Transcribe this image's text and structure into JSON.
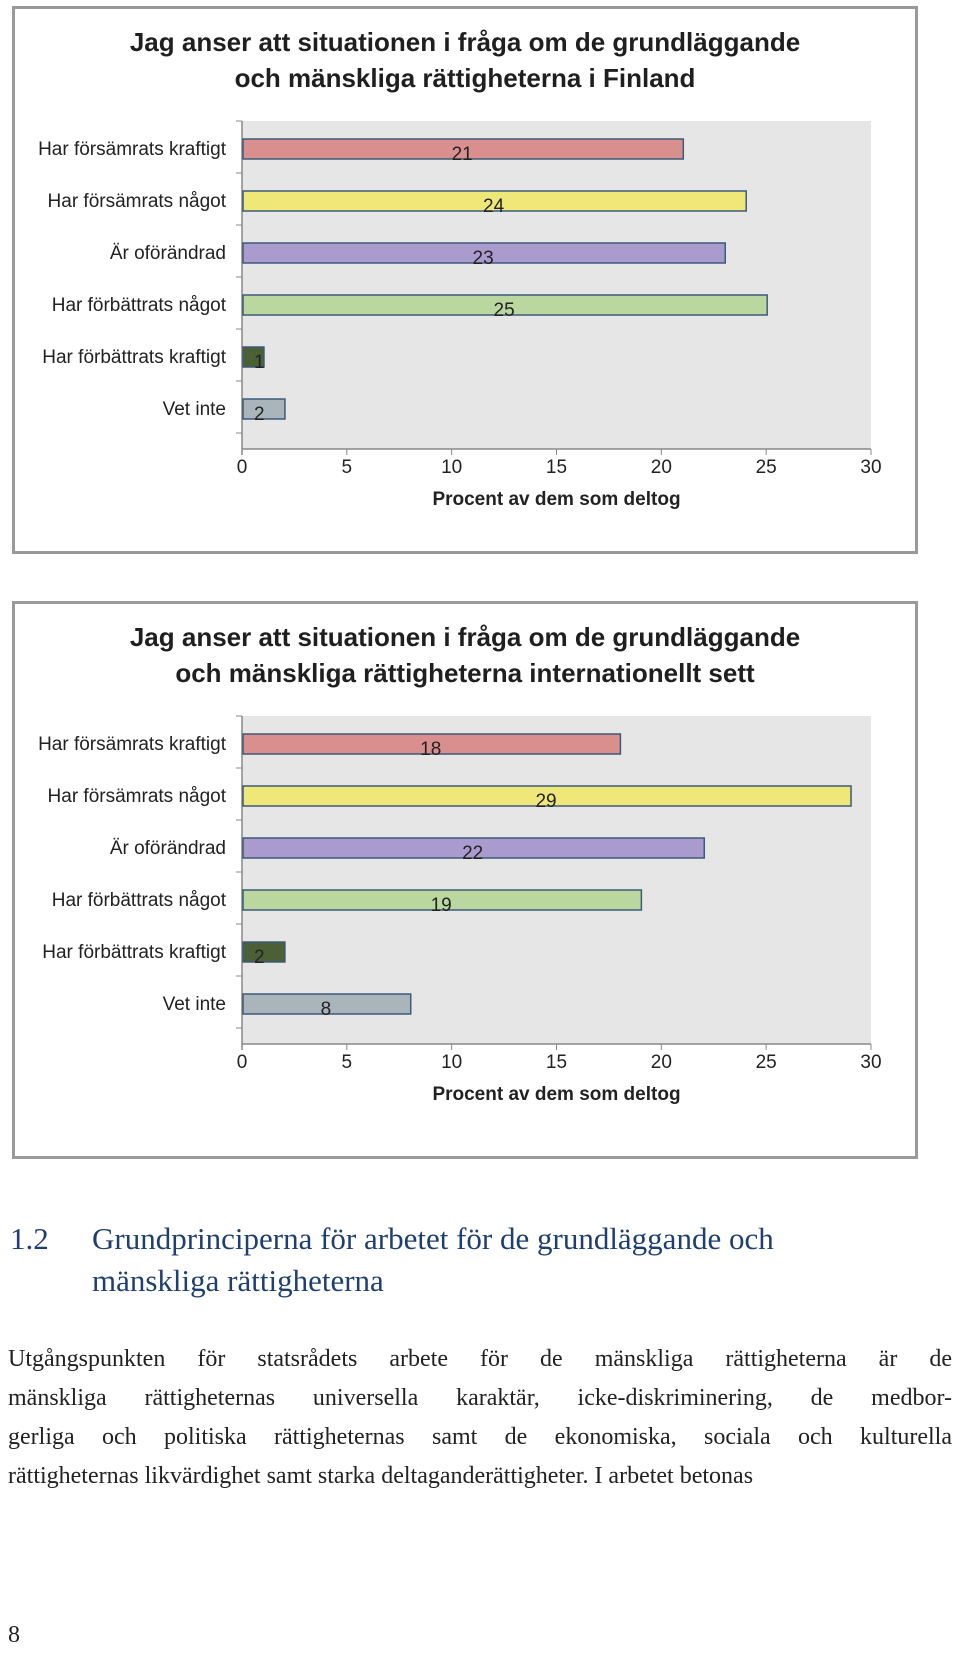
{
  "chart_data": [
    {
      "type": "bar",
      "orientation": "horizontal",
      "title_lines": [
        "Jag anser att situationen i fråga om de grundläggande",
        "och mänskliga rättigheterna i Finland"
      ],
      "categories": [
        "Har försämrats kraftigt",
        "Har försämrats något",
        "Är oförändrad",
        "Har förbättrats något",
        "Har förbättrats kraftigt",
        "Vet inte"
      ],
      "values": [
        21,
        24,
        23,
        25,
        1,
        2
      ],
      "bar_colors": [
        "#d98f8d",
        "#efe879",
        "#a99bcd",
        "#bad7a0",
        "#4c6036",
        "#aab4bb"
      ],
      "xlabel": "Procent av dem som deltog",
      "xlim": [
        0,
        30
      ],
      "xticks": [
        "0",
        "5",
        "10",
        "15",
        "20",
        "25",
        "30"
      ]
    },
    {
      "type": "bar",
      "orientation": "horizontal",
      "title_lines": [
        "Jag anser att situationen i fråga om de grundläggande",
        "och mänskliga rättigheterna internationellt sett"
      ],
      "categories": [
        "Har försämrats kraftigt",
        "Har försämrats något",
        "Är oförändrad",
        "Har förbättrats något",
        "Har förbättrats kraftigt",
        "Vet inte"
      ],
      "values": [
        18,
        29,
        22,
        19,
        2,
        8
      ],
      "bar_colors": [
        "#d98f8d",
        "#efe879",
        "#a99bcd",
        "#bad7a0",
        "#4c6036",
        "#aab4bb"
      ],
      "xlabel": "Procent av dem som deltog",
      "xlim": [
        0,
        30
      ],
      "xticks": [
        "0",
        "5",
        "10",
        "15",
        "20",
        "25",
        "30"
      ]
    }
  ],
  "section": {
    "number": "1.2",
    "heading_line1": "Grundprinciperna för arbetet för de grundläggande och",
    "heading_line2": "mänskliga rättigheterna"
  },
  "body_lines": [
    "Utgångspunkten för statsrådets arbete för de mänskliga rättigheterna är de",
    "mänskliga rättigheternas universella karaktär, icke-diskriminering, de medbor-",
    "gerliga och politiska rättigheternas samt de ekonomiska, sociala och kulturella",
    "rättigheternas likvärdighet samt starka deltaganderättigheter. I arbetet betonas"
  ],
  "page_number": "8",
  "colors": {
    "plot_bg": "#e6e6e6",
    "heading": "#1e3f73",
    "border": "#9a9a9a"
  }
}
